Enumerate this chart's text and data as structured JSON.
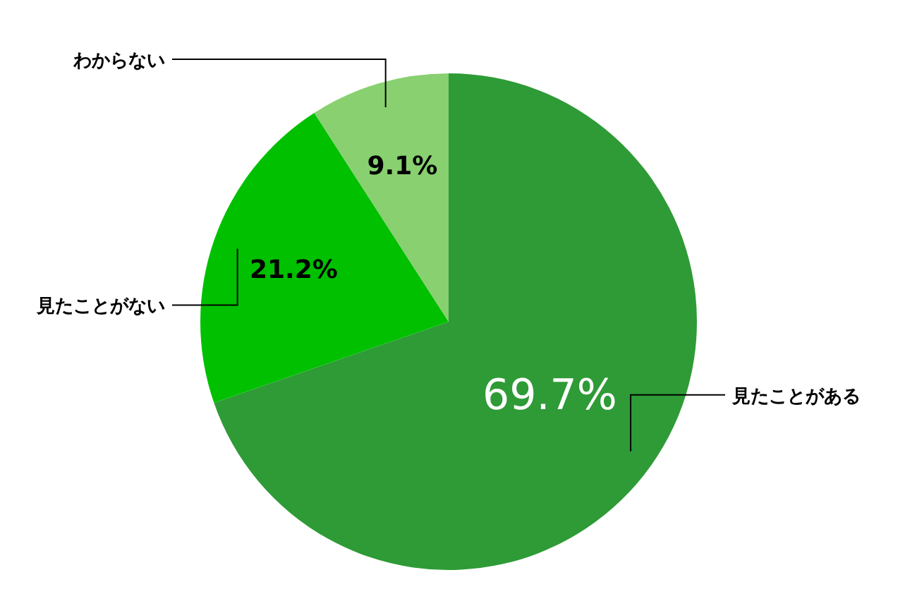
{
  "chart_data": {
    "type": "pie",
    "categories": [
      "見たことがある",
      "見たことがない",
      "わからない"
    ],
    "values": [
      69.7,
      21.2,
      9.1
    ],
    "value_labels": [
      "69.7%",
      "21.2%",
      "9.1%"
    ],
    "colors": [
      "#2e9b36",
      "#00c000",
      "#88d070"
    ]
  }
}
